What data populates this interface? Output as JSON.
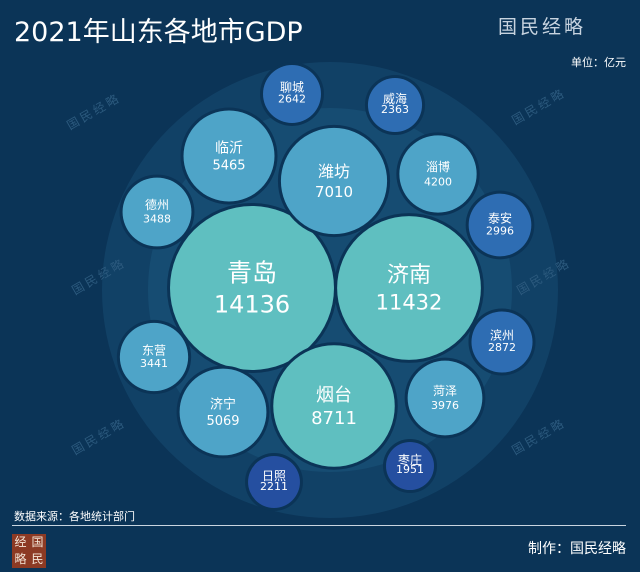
{
  "header": {
    "title": "2021年山东各地市GDP",
    "brand": "国民经略",
    "unit": "单位：亿元"
  },
  "footer": {
    "source": "数据来源：各地统计部门",
    "credit": "制作：国民经略",
    "logo_chars": [
      "经",
      "国",
      "略",
      "民"
    ]
  },
  "watermark_text": "国民经略",
  "colors": {
    "background": "#0b3457",
    "large": "#5fbfc0",
    "mid": "#4ea4c8",
    "small": "#2e6db3",
    "smallest": "#254fa0"
  },
  "chart_data": {
    "type": "bubble",
    "title": "2021年山东各地市GDP",
    "unit": "亿元",
    "cities": [
      {
        "name": "青岛",
        "value": 14136
      },
      {
        "name": "济南",
        "value": 11432
      },
      {
        "name": "烟台",
        "value": 8711
      },
      {
        "name": "潍坊",
        "value": 7010
      },
      {
        "name": "临沂",
        "value": 5465
      },
      {
        "name": "济宁",
        "value": 5069
      },
      {
        "name": "淄博",
        "value": 4200
      },
      {
        "name": "菏泽",
        "value": 3976
      },
      {
        "name": "德州",
        "value": 3488
      },
      {
        "name": "东营",
        "value": 3441
      },
      {
        "name": "泰安",
        "value": 2996
      },
      {
        "name": "滨州",
        "value": 2872
      },
      {
        "name": "聊城",
        "value": 2642
      },
      {
        "name": "威海",
        "value": 2363
      },
      {
        "name": "日照",
        "value": 2211
      },
      {
        "name": "枣庄",
        "value": 1951
      }
    ]
  }
}
